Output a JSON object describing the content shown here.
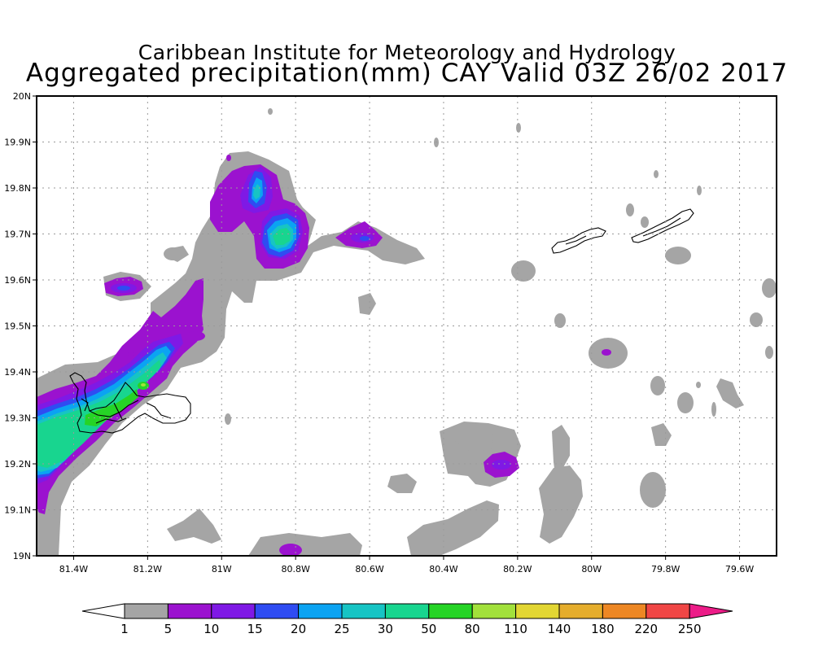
{
  "title": {
    "line1": "Caribbean Institute for Meteorology and Hydrology",
    "line2": "Aggregated precipitation(mm) CAY Valid 03Z 26/02 2017"
  },
  "map": {
    "lon_range": [
      -81.5,
      -79.5
    ],
    "lat_range": [
      19.0,
      20.0
    ],
    "grid": true,
    "x_ticks": [
      "81.4W",
      "81.2W",
      "81W",
      "80.8W",
      "80.6W",
      "80.4W",
      "80.2W",
      "80W",
      "79.8W",
      "79.6W"
    ],
    "y_ticks": [
      "19N",
      "19.1N",
      "19.2N",
      "19.3N",
      "19.4N",
      "19.5N",
      "19.6N",
      "19.7N",
      "19.8N",
      "19.9N",
      "20N"
    ],
    "islands": [
      "Grand Cayman",
      "Little Cayman",
      "Cayman Brac"
    ]
  },
  "colorbar": {
    "levels": [
      "1",
      "5",
      "10",
      "15",
      "20",
      "25",
      "30",
      "50",
      "80",
      "110",
      "140",
      "180",
      "220",
      "250"
    ],
    "colors": [
      "#a5a5a5",
      "#9b12cf",
      "#7f19e5",
      "#2f4cf2",
      "#0ba3f2",
      "#17c4c4",
      "#18d58f",
      "#26d426",
      "#a2e13b",
      "#e2d633",
      "#e5ad2c",
      "#ed8724",
      "#f04645",
      "#ec1c88"
    ]
  }
}
